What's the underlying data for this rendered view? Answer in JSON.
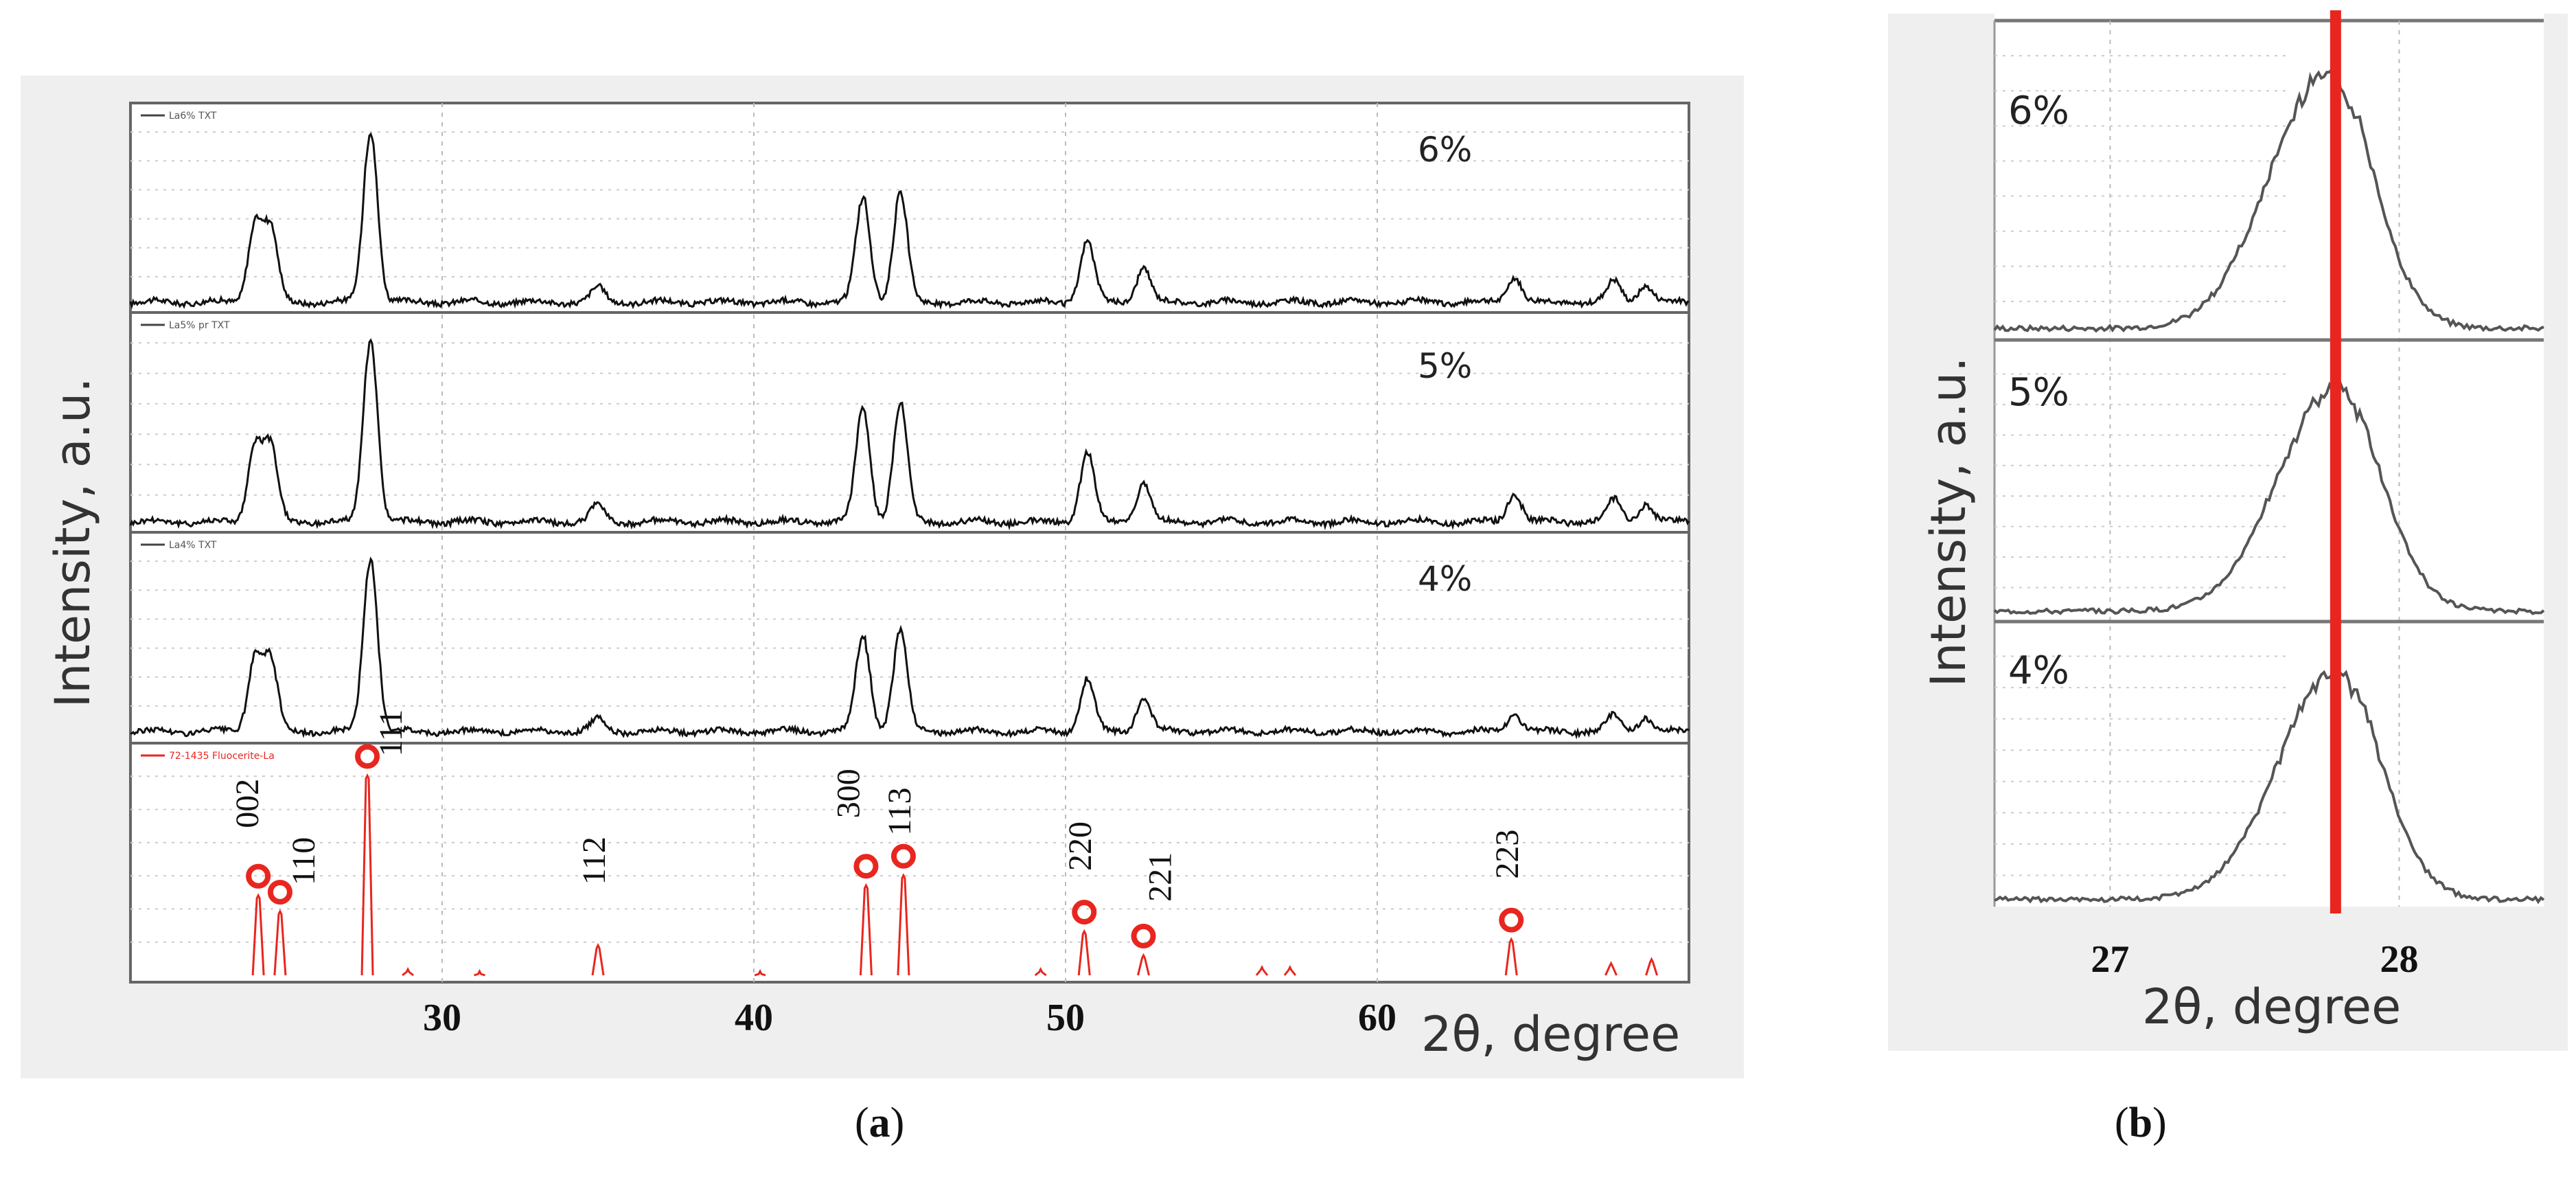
{
  "chart_data": [
    {
      "type": "line",
      "panel": "(a)",
      "caption_label": "a",
      "xlabel": "2θ, degree",
      "ylabel": "Intensity, a.u.",
      "xlim": [
        20,
        70
      ],
      "x_ticks": [
        30,
        40,
        50,
        60
      ],
      "grid": true,
      "series": [
        {
          "name": "6%",
          "legend_text": "La6% TXT",
          "peaks": [
            [
              24.0,
              0.45
            ],
            [
              24.5,
              0.42
            ],
            [
              27.7,
              1.0
            ],
            [
              35.0,
              0.08
            ],
            [
              43.5,
              0.6
            ],
            [
              44.7,
              0.62
            ],
            [
              50.7,
              0.35
            ],
            [
              52.5,
              0.2
            ],
            [
              64.4,
              0.15
            ],
            [
              67.6,
              0.12
            ],
            [
              68.6,
              0.1
            ]
          ]
        },
        {
          "name": "5%",
          "legend_text": "La5% pr TXT",
          "peaks": [
            [
              24.0,
              0.42
            ],
            [
              24.5,
              0.4
            ],
            [
              27.7,
              1.0
            ],
            [
              35.0,
              0.09
            ],
            [
              43.5,
              0.62
            ],
            [
              44.7,
              0.65
            ],
            [
              50.7,
              0.38
            ],
            [
              52.5,
              0.22
            ],
            [
              64.4,
              0.16
            ],
            [
              67.6,
              0.12
            ],
            [
              68.6,
              0.1
            ]
          ]
        },
        {
          "name": "4%",
          "legend_text": "La4% TXT",
          "peaks": [
            [
              24.0,
              0.42
            ],
            [
              24.5,
              0.4
            ],
            [
              27.7,
              1.0
            ],
            [
              35.0,
              0.07
            ],
            [
              43.5,
              0.55
            ],
            [
              44.7,
              0.58
            ],
            [
              50.7,
              0.3
            ],
            [
              52.5,
              0.2
            ],
            [
              64.4,
              0.1
            ],
            [
              67.6,
              0.09
            ],
            [
              68.6,
              0.08
            ]
          ]
        }
      ],
      "reference": {
        "legend_text": "72-1435 Fluocerite-La",
        "lines": [
          {
            "hkl": "002",
            "x": 24.1,
            "y": 0.4,
            "marked": true
          },
          {
            "hkl": "110",
            "x": 24.8,
            "y": 0.32,
            "marked": true
          },
          {
            "hkl": "111",
            "x": 27.6,
            "y": 1.0,
            "marked": true
          },
          {
            "hkl": "112",
            "x": 35.0,
            "y": 0.15,
            "marked": false
          },
          {
            "hkl": "300",
            "x": 43.6,
            "y": 0.45,
            "marked": true
          },
          {
            "hkl": "113",
            "x": 44.8,
            "y": 0.5,
            "marked": true
          },
          {
            "hkl": "220",
            "x": 50.6,
            "y": 0.22,
            "marked": true
          },
          {
            "hkl": "221",
            "x": 52.5,
            "y": 0.1,
            "marked": true
          },
          {
            "hkl": "223",
            "x": 64.3,
            "y": 0.18,
            "marked": true
          }
        ],
        "extra_lines": [
          [
            28.9,
            0.03
          ],
          [
            31.2,
            0.02
          ],
          [
            40.2,
            0.02
          ],
          [
            49.2,
            0.03
          ],
          [
            56.3,
            0.04
          ],
          [
            57.2,
            0.04
          ],
          [
            67.5,
            0.06
          ],
          [
            68.8,
            0.08
          ]
        ]
      }
    },
    {
      "type": "line",
      "panel": "(b)",
      "caption_label": "b",
      "xlabel": "2θ, degree",
      "ylabel": "Intensity, a.u.",
      "xlim": [
        26.6,
        28.5
      ],
      "x_ticks": [
        27,
        28
      ],
      "grid": true,
      "reference_line_x": 27.78,
      "reference_line_color": "#e8261f",
      "series": [
        {
          "name": "6%",
          "peak_x": 27.75,
          "split_x": 27.86
        },
        {
          "name": "5%",
          "peak_x": 27.78,
          "split_x": 27.86
        },
        {
          "name": "4%",
          "peak_x": 27.78,
          "split_x": 27.86
        }
      ]
    }
  ]
}
